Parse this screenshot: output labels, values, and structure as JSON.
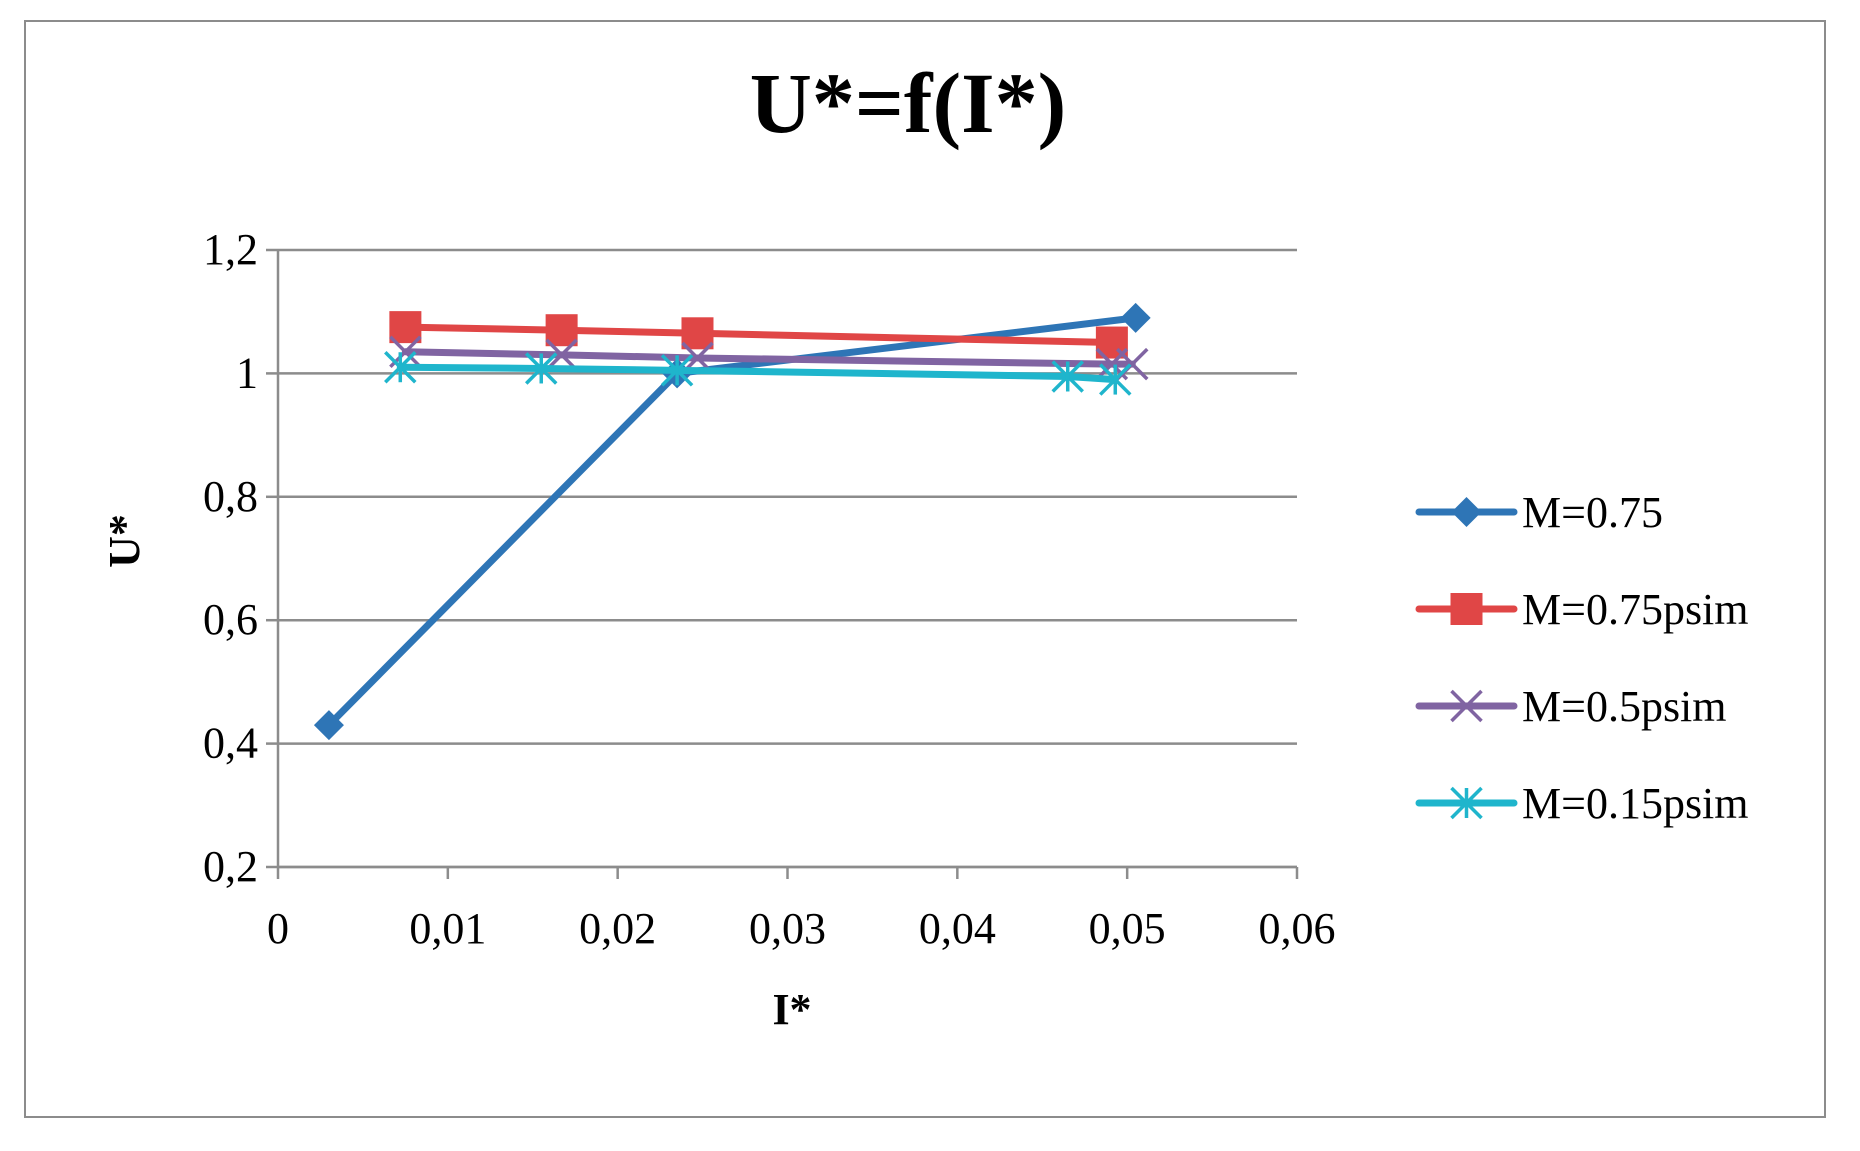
{
  "chart_data": {
    "type": "line",
    "title": "U*=f(I*)",
    "xlabel": "I*",
    "ylabel": "U*",
    "xlim": [
      0,
      0.06
    ],
    "ylim": [
      0.2,
      1.2
    ],
    "x_ticks": [
      0,
      0.01,
      0.02,
      0.03,
      0.04,
      0.05,
      0.06
    ],
    "x_tick_labels": [
      "0",
      "0,01",
      "0,02",
      "0,03",
      "0,04",
      "0,05",
      "0,06"
    ],
    "y_ticks": [
      0.2,
      0.4,
      0.6,
      0.8,
      1.0,
      1.2
    ],
    "y_tick_labels": [
      "0,2",
      "0,4",
      "0,6",
      "0,8",
      "1",
      "1,2"
    ],
    "grid": "horizontal",
    "legend_position": "right",
    "series": [
      {
        "name": "M=0.75",
        "color": "#2e75b6",
        "marker": "diamond",
        "x": [
          0.003,
          0.0235,
          0.0505
        ],
        "y": [
          0.43,
          1.0,
          1.09
        ]
      },
      {
        "name": "M=0.75psim",
        "color": "#e04646",
        "marker": "square",
        "x": [
          0.0075,
          0.0167,
          0.0247,
          0.0491
        ],
        "y": [
          1.075,
          1.07,
          1.065,
          1.05
        ]
      },
      {
        "name": "M=0.5psim",
        "color": "#8064a2",
        "marker": "x",
        "x": [
          0.0075,
          0.0167,
          0.0247,
          0.0491,
          0.0503
        ],
        "y": [
          1.035,
          1.03,
          1.025,
          1.015,
          1.015
        ]
      },
      {
        "name": "M=0.15psim",
        "color": "#1fb5cc",
        "marker": "star",
        "x": [
          0.0072,
          0.0155,
          0.0235,
          0.0465,
          0.0493
        ],
        "y": [
          1.01,
          1.008,
          1.005,
          0.995,
          0.99
        ]
      }
    ]
  }
}
